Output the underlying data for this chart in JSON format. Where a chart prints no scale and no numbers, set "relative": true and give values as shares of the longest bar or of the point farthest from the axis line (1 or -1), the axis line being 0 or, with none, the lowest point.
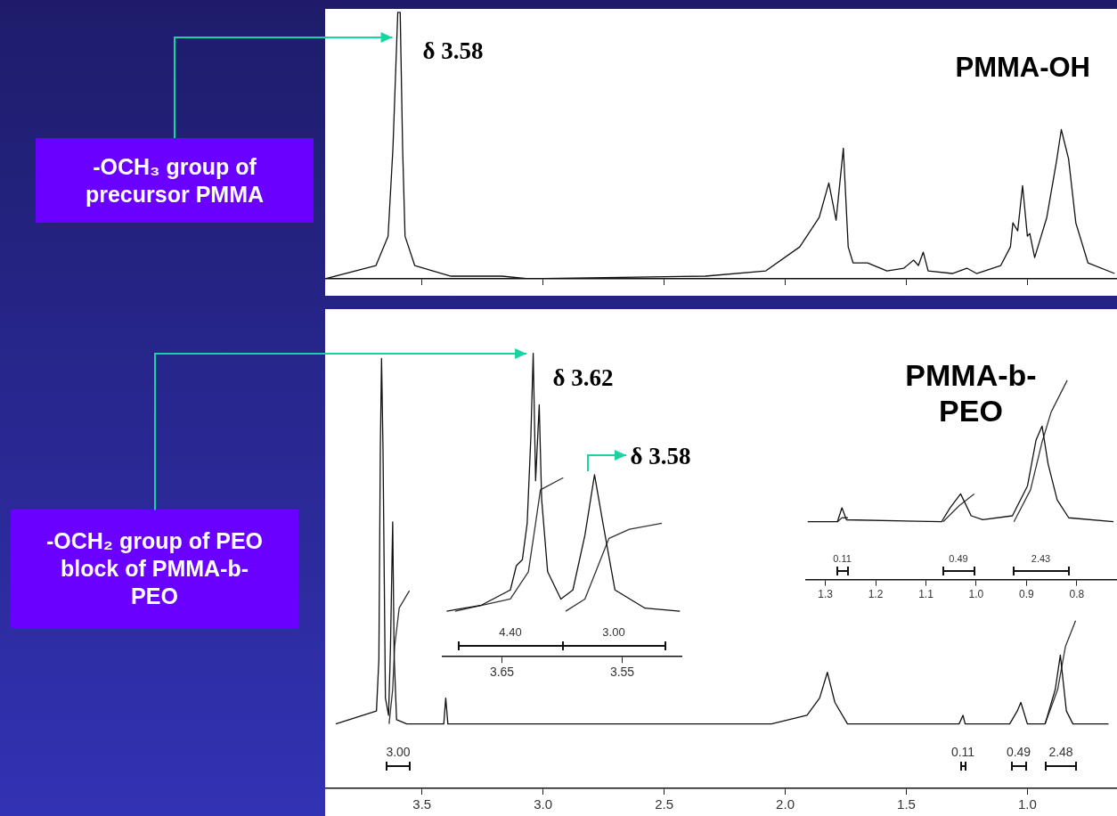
{
  "chart_data": [
    {
      "type": "line",
      "title": "PMMA-OH",
      "relative": true,
      "xlim": [
        3.9,
        0.63
      ],
      "tick_labels": false,
      "xticks": [
        {
          "value": 3.5,
          "label": null
        },
        {
          "value": 3,
          "label": null
        },
        {
          "value": 2.5,
          "label": null
        },
        {
          "value": 2,
          "label": null
        },
        {
          "value": 1.5,
          "label": null
        },
        {
          "value": 1,
          "label": null
        }
      ],
      "series": [
        {
          "color": "#111111",
          "x": [
            3.9,
            3.69,
            3.64,
            3.62,
            3.6,
            3.59,
            3.58,
            3.57,
            3.53,
            3.38,
            3.17,
            3.06,
            2.33,
            2.08,
            1.94,
            1.86,
            1.82,
            1.79,
            1.76,
            1.74,
            1.72,
            1.66,
            1.58,
            1.51,
            1.47,
            1.45,
            1.43,
            1.41,
            1.31,
            1.25,
            1.21,
            1.11,
            1.07,
            1.06,
            1.04,
            1.02,
            1.0,
            0.99,
            0.97,
            0.92,
            0.88,
            0.86,
            0.83,
            0.8,
            0.75,
            0.64
          ],
          "values": [
            0,
            0.05,
            0.16,
            0.49,
            1,
            1,
            0.49,
            0.16,
            0.05,
            0.01,
            0.01,
            0,
            0.01,
            0.03,
            0.12,
            0.23,
            0.36,
            0.22,
            0.49,
            0.12,
            0.06,
            0.06,
            0.03,
            0.04,
            0.07,
            0.05,
            0.1,
            0.03,
            0.02,
            0.04,
            0.02,
            0.05,
            0.12,
            0.21,
            0.18,
            0.35,
            0.16,
            0.17,
            0.08,
            0.23,
            0.44,
            0.56,
            0.45,
            0.21,
            0.06,
            0.02
          ]
        }
      ],
      "annotations": [
        "-OCH₃ group of precursor PMMA",
        {
          "text": "δ 3.58",
          "x": 3.6,
          "y": 1
        }
      ]
    },
    {
      "type": "line",
      "title": "PMMA-b-PEO",
      "relative": true,
      "xlim": [
        3.9,
        0.63
      ],
      "xticks": [
        3.5,
        {
          "value": 3,
          "label": "3.0"
        },
        2.5,
        {
          "value": 2,
          "label": "2.0"
        },
        1.5,
        {
          "value": 1,
          "label": "1.0"
        }
      ],
      "series": [
        {
          "color": "#111111",
          "x": [
            3.856,
            3.688,
            3.678,
            3.672,
            3.667,
            3.661,
            3.651,
            3.638,
            3.63,
            3.621,
            3.615,
            3.605,
            3.563,
            3.41,
            3.402,
            3.393,
            2.642,
            2.057,
            1.91,
            1.858,
            1.826,
            1.795,
            1.743,
            1.282,
            1.266,
            1.257,
            1.073,
            1.042,
            1.027,
            1.0,
            0.927,
            0.885,
            0.864,
            0.839,
            0.812,
            0.665
          ],
          "values": [
            0.15,
            0.18,
            0.3,
            0.79,
            1,
            0.79,
            0.21,
            0.17,
            0.33,
            0.62,
            0.31,
            0.16,
            0.15,
            0.15,
            0.21,
            0.15,
            0.15,
            0.15,
            0.17,
            0.21,
            0.27,
            0.2,
            0.15,
            0.15,
            0.17,
            0.15,
            0.15,
            0.18,
            0.2,
            0.15,
            0.15,
            0.23,
            0.31,
            0.18,
            0.15,
            0.15
          ]
        },
        {
          "color": "#333333",
          "x": [
            3.636,
            3.621,
            3.613,
            3.594,
            3.552
          ],
          "values": [
            0.15,
            0.23,
            0.33,
            0.42,
            0.46
          ]
        },
        {
          "color": "#333333",
          "x": [
            0.927,
            0.875,
            0.843,
            0.801
          ],
          "values": [
            0.15,
            0.23,
            0.33,
            0.39
          ]
        }
      ],
      "annotations": [
        "3.00",
        "0.11",
        "0.49",
        "2.48"
      ]
    },
    {
      "type": "line",
      "relative": true,
      "xlim": [
        3.7,
        3.5
      ],
      "xticks": [
        3.65,
        3.55
      ],
      "series": [
        {
          "color": "#111111",
          "x": [
            3.696,
            3.667,
            3.643,
            3.638,
            3.633,
            3.629,
            3.626,
            3.624,
            3.622,
            3.619,
            3.617,
            3.612,
            3.601,
            3.591,
            3.581,
            3.573,
            3.566,
            3.556,
            3.531,
            3.502
          ],
          "values": [
            0.15,
            0.17,
            0.22,
            0.3,
            0.32,
            0.44,
            0.72,
            1,
            0.58,
            0.83,
            0.52,
            0.28,
            0.19,
            0.22,
            0.4,
            0.6,
            0.44,
            0.22,
            0.16,
            0.15
          ]
        },
        {
          "color": "#333333",
          "x": [
            3.689,
            3.643,
            3.628,
            3.622,
            3.618,
            3.599
          ],
          "values": [
            0.15,
            0.19,
            0.28,
            0.44,
            0.55,
            0.59
          ]
        },
        {
          "color": "#333333",
          "x": [
            3.597,
            3.581,
            3.57,
            3.561,
            3.544,
            3.517
          ],
          "values": [
            0.15,
            0.19,
            0.3,
            0.39,
            0.42,
            0.44
          ]
        }
      ],
      "annotations": [
        "-OCH₂ group of PEO block of PMMA-b-PEO",
        {
          "text": "δ 3.62",
          "x": 3.624,
          "y": 1
        },
        {
          "text": "δ 3.58",
          "x": 3.573,
          "y": 0.6
        },
        "4.40",
        "3.00"
      ]
    },
    {
      "type": "line",
      "relative": true,
      "xlim": [
        1.34,
        0.72
      ],
      "xticks": [
        1.3,
        1.2,
        1.1,
        {
          "value": 1,
          "label": "1.0"
        },
        0.9,
        0.8
      ],
      "series": [
        {
          "color": "#111111",
          "x": [
            1.335,
            1.276,
            1.267,
            1.258,
            1.069,
            1.052,
            1.031,
            1.01,
            0.987,
            0.928,
            0.898,
            0.881,
            0.869,
            0.857,
            0.839,
            0.816,
            0.727
          ],
          "values": [
            0.29,
            0.29,
            0.36,
            0.3,
            0.29,
            0.36,
            0.43,
            0.32,
            0.3,
            0.32,
            0.47,
            0.7,
            0.77,
            0.58,
            0.4,
            0.31,
            0.29
          ]
        },
        {
          "color": "#333333",
          "x": [
            1.276,
            1.267,
            1.255
          ],
          "values": [
            0.29,
            0.31,
            0.31
          ]
        },
        {
          "color": "#333333",
          "x": [
            1.066,
            1.034,
            1.004
          ],
          "values": [
            0.29,
            0.37,
            0.43
          ]
        },
        {
          "color": "#333333",
          "x": [
            0.925,
            0.892,
            0.869,
            0.851,
            0.819
          ],
          "values": [
            0.29,
            0.45,
            0.69,
            0.84,
            1
          ]
        }
      ],
      "annotations": [
        "0.11",
        "0.49",
        "2.43"
      ]
    }
  ]
}
